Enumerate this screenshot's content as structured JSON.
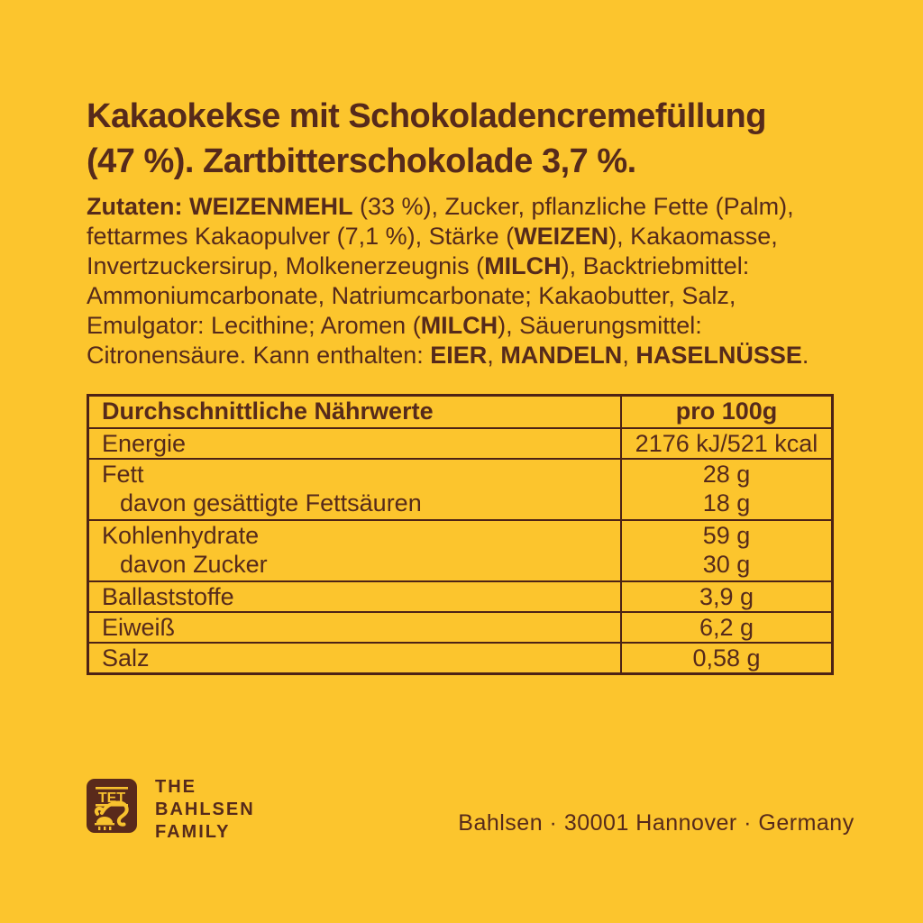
{
  "colors": {
    "background": "#FCC52D",
    "ink": "#562A1B",
    "table_line": "#4D2315",
    "logo_bg": "#5A2A1B",
    "logo_ink": "#F8C22E"
  },
  "title": {
    "line1": "Kakaokekse mit Schokoladencremefüllung",
    "line2": "(47 %). Zartbitterschokolade 3,7 %."
  },
  "ingredients": {
    "lines": [
      [
        {
          "text": "Zutaten: WEIZENMEHL",
          "bold": true
        },
        {
          "text": " (33 %), Zucker, pflanzliche Fette (Palm),",
          "bold": false
        }
      ],
      [
        {
          "text": "fettarmes Kakaopulver (7,1 %), Stärke (",
          "bold": false
        },
        {
          "text": "WEIZEN",
          "bold": true
        },
        {
          "text": "), Kakaomasse,",
          "bold": false
        }
      ],
      [
        {
          "text": "Invertzuckersirup, Molkenerzeugnis (",
          "bold": false
        },
        {
          "text": "MILCH",
          "bold": true
        },
        {
          "text": "), Backtriebmittel:",
          "bold": false
        }
      ],
      [
        {
          "text": "Ammoniumcarbonate, Natriumcarbonate; Kakaobutter, Salz,",
          "bold": false
        }
      ],
      [
        {
          "text": "Emulgator: Lecithine; Aromen (",
          "bold": false
        },
        {
          "text": "MILCH",
          "bold": true
        },
        {
          "text": "), Säuerungsmittel:",
          "bold": false
        }
      ],
      [
        {
          "text": "Citronensäure. Kann enthalten: ",
          "bold": false
        },
        {
          "text": "EIER",
          "bold": true
        },
        {
          "text": ", ",
          "bold": false
        },
        {
          "text": "MANDELN",
          "bold": true
        },
        {
          "text": ", ",
          "bold": false
        },
        {
          "text": "HASELNÜSSE",
          "bold": true
        },
        {
          "text": ".",
          "bold": false
        }
      ]
    ]
  },
  "nutrition": {
    "header": {
      "label": "Durchschnittliche Nährwerte",
      "value": "pro 100g"
    },
    "rows": [
      {
        "label": "Energie",
        "value": "2176 kJ/521 kcal",
        "sub": false
      },
      {
        "label": "Fett",
        "value": "28 g",
        "sub": false
      },
      {
        "label": "davon gesättigte Fettsäuren",
        "value": "18 g",
        "sub": true
      },
      {
        "label": "Kohlenhydrate",
        "value": "59 g",
        "sub": false
      },
      {
        "label": "davon Zucker",
        "value": "30 g",
        "sub": true
      },
      {
        "label": "Ballaststoffe",
        "value": "3,9 g",
        "sub": false
      },
      {
        "label": "Eiweiß",
        "value": "6,2 g",
        "sub": false
      },
      {
        "label": "Salz",
        "value": "0,58 g",
        "sub": false
      }
    ]
  },
  "brand": {
    "badge_text": "TET",
    "wordmark": [
      "THE",
      "BAHLSEN",
      "FAMILY"
    ]
  },
  "footer": {
    "address": "Bahlsen · 30001 Hannover · Germany"
  }
}
